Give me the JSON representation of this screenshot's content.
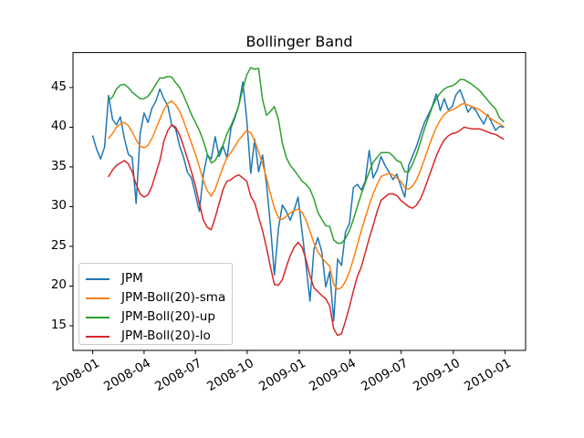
{
  "title": "Bollinger Band",
  "colors": {
    "jpm": "#1f77b4",
    "sma": "#ff7f0e",
    "upper": "#2ca02c",
    "lower": "#d62728",
    "spine": "#000000",
    "legend_border": "#cccccc"
  },
  "chart_data": {
    "type": "line",
    "title": "Bollinger Band",
    "x_unit": "weeks since 2008-01-04 (weekly closes)",
    "xlim": [
      -5.0,
      109.6
    ],
    "ylim": [
      11.9,
      49.4
    ],
    "grid": false,
    "legend_position": "lower left",
    "yticks": [
      15,
      20,
      25,
      30,
      35,
      40,
      45
    ],
    "xticks": [
      {
        "week": 0.0,
        "label": "2008-01"
      },
      {
        "week": 13.0,
        "label": "2008-04"
      },
      {
        "week": 26.0,
        "label": "2008-07"
      },
      {
        "week": 39.1,
        "label": "2008-10"
      },
      {
        "week": 52.3,
        "label": "2009-01"
      },
      {
        "week": 65.1,
        "label": "2009-04"
      },
      {
        "week": 78.1,
        "label": "2009-07"
      },
      {
        "week": 91.3,
        "label": "2009-10"
      },
      {
        "week": 104.4,
        "label": "2010-01"
      }
    ],
    "series": [
      {
        "name": "JPM",
        "color": "#1f77b4",
        "start_week": 0,
        "values": [
          38.9,
          37.2,
          36.0,
          37.5,
          44.0,
          41.0,
          40.3,
          41.3,
          38.6,
          36.6,
          36.2,
          30.4,
          39.2,
          41.8,
          40.6,
          42.4,
          43.3,
          44.8,
          43.6,
          42.7,
          40.3,
          39.8,
          37.6,
          36.2,
          34.3,
          33.6,
          31.5,
          29.4,
          34.0,
          36.5,
          36.0,
          38.8,
          36.3,
          37.6,
          36.1,
          39.9,
          41.2,
          42.8,
          45.7,
          41.0,
          34.2,
          38.5,
          34.4,
          36.5,
          32.8,
          27.6,
          21.4,
          27.2,
          30.2,
          29.4,
          28.3,
          29.6,
          31.2,
          26.9,
          22.6,
          18.1,
          24.6,
          26.1,
          24.3,
          19.9,
          21.8,
          15.6,
          23.4,
          22.6,
          26.8,
          27.9,
          32.4,
          32.8,
          32.1,
          33.2,
          37.1,
          33.6,
          34.6,
          36.3,
          35.2,
          34.4,
          33.4,
          34.1,
          32.6,
          31.2,
          35.2,
          36.4,
          37.6,
          39.2,
          40.6,
          41.6,
          42.7,
          44.2,
          42.1,
          43.6,
          42.2,
          42.6,
          44.1,
          44.7,
          43.4,
          41.9,
          42.6,
          42.1,
          41.2,
          40.4,
          41.6,
          40.6,
          39.6,
          40.1,
          40.0
        ]
      },
      {
        "name": "JPM-Boll(20)-sma",
        "color": "#ff7f0e",
        "start_week": 4,
        "values": [
          38.6,
          39.2,
          40.0,
          40.4,
          40.6,
          40.2,
          39.4,
          38.4,
          37.6,
          37.4,
          37.7,
          38.6,
          39.8,
          41.0,
          42.2,
          43.0,
          43.3,
          42.8,
          42.0,
          40.8,
          39.4,
          38.0,
          36.6,
          35.0,
          33.3,
          32.0,
          31.3,
          32.2,
          33.6,
          35.0,
          36.2,
          36.8,
          37.6,
          38.4,
          39.0,
          39.6,
          39.3,
          38.3,
          36.9,
          35.4,
          33.6,
          31.6,
          29.8,
          28.6,
          28.4,
          28.8,
          29.2,
          29.5,
          29.7,
          29.3,
          28.3,
          26.9,
          25.4,
          24.3,
          23.6,
          23.0,
          22.5,
          20.2,
          19.6,
          19.8,
          20.6,
          21.8,
          23.4,
          25.2,
          27.0,
          28.6,
          30.2,
          31.6,
          32.8,
          33.8,
          34.0,
          34.2,
          34.0,
          33.6,
          33.2,
          32.4,
          32.2,
          32.6,
          33.4,
          34.6,
          36.0,
          37.4,
          38.8,
          40.0,
          40.9,
          41.6,
          42.0,
          42.2,
          42.4,
          42.8,
          43.0,
          42.8,
          42.6,
          42.4,
          42.2,
          41.8,
          41.4,
          41.0,
          40.7,
          40.4,
          40.1
        ]
      },
      {
        "name": "JPM-Boll(20)-up",
        "color": "#2ca02c",
        "start_week": 4,
        "values": [
          43.4,
          43.8,
          44.8,
          45.3,
          45.4,
          45.0,
          44.4,
          44.0,
          43.6,
          43.6,
          43.9,
          44.6,
          45.4,
          46.2,
          46.2,
          46.4,
          46.3,
          45.6,
          45.0,
          44.0,
          42.8,
          41.6,
          40.6,
          39.6,
          38.3,
          36.6,
          35.5,
          35.8,
          36.8,
          37.8,
          39.2,
          40.2,
          41.4,
          42.8,
          44.8,
          46.6,
          47.5,
          47.3,
          47.4,
          43.5,
          41.5,
          42.0,
          42.6,
          41.0,
          38.0,
          36.2,
          35.2,
          34.6,
          33.9,
          33.2,
          32.8,
          32.2,
          31.0,
          29.3,
          28.4,
          27.6,
          27.5,
          25.8,
          25.4,
          25.4,
          26.0,
          27.0,
          28.4,
          30.0,
          31.6,
          33.0,
          34.4,
          35.6,
          36.2,
          36.8,
          36.8,
          36.8,
          36.4,
          35.8,
          35.6,
          34.4,
          34.4,
          35.4,
          36.6,
          38.2,
          39.8,
          41.2,
          42.6,
          43.6,
          44.3,
          44.8,
          45.1,
          45.2,
          45.5,
          46.0,
          46.0,
          45.7,
          45.4,
          45.0,
          44.6,
          44.0,
          43.4,
          42.8,
          42.3,
          41.2,
          40.7
        ]
      },
      {
        "name": "JPM-Boll(20)-lo",
        "color": "#d62728",
        "start_week": 4,
        "values": [
          33.8,
          34.6,
          35.2,
          35.5,
          35.8,
          35.4,
          34.4,
          32.8,
          31.6,
          31.2,
          31.5,
          32.6,
          34.2,
          35.8,
          38.2,
          39.6,
          40.3,
          40.0,
          39.0,
          37.6,
          36.0,
          34.4,
          32.6,
          30.4,
          28.3,
          27.4,
          27.1,
          28.6,
          30.4,
          32.2,
          33.2,
          33.4,
          33.8,
          34.0,
          33.6,
          33.2,
          31.3,
          30.5,
          28.7,
          27.0,
          24.8,
          22.4,
          20.2,
          20.1,
          20.8,
          22.4,
          23.8,
          24.9,
          25.5,
          24.9,
          23.3,
          21.3,
          19.8,
          19.3,
          18.8,
          18.4,
          17.5,
          14.6,
          13.8,
          14.0,
          15.6,
          17.4,
          19.4,
          21.2,
          22.4,
          24.2,
          26.0,
          27.6,
          29.4,
          30.8,
          31.2,
          31.6,
          31.6,
          31.4,
          30.8,
          30.4,
          30.0,
          29.8,
          30.2,
          31.0,
          32.2,
          33.6,
          35.0,
          36.4,
          37.5,
          38.4,
          38.9,
          39.2,
          39.3,
          39.6,
          40.0,
          39.9,
          39.8,
          39.8,
          39.8,
          39.6,
          39.4,
          39.2,
          39.1,
          38.8,
          38.5
        ]
      }
    ]
  },
  "legend": {
    "entries": [
      "JPM",
      "JPM-Boll(20)-sma",
      "JPM-Boll(20)-up",
      "JPM-Boll(20)-lo"
    ]
  }
}
